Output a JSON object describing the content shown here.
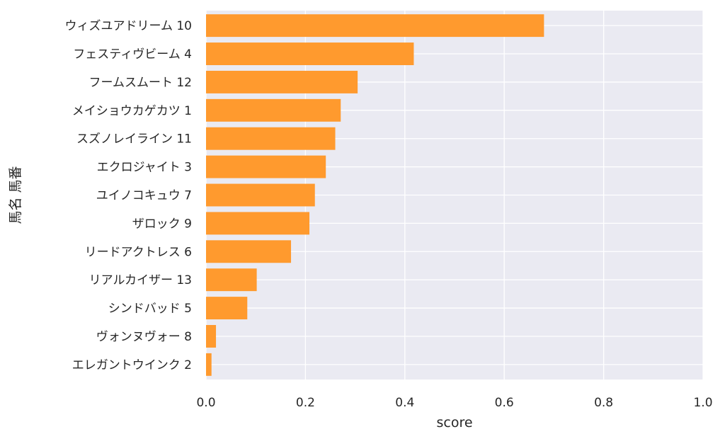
{
  "chart_data": {
    "type": "bar",
    "orientation": "horizontal",
    "categories": [
      "ウィズユアドリーム 10",
      "フェスティヴビーム 4",
      "フームスムート 12",
      "メイショウカゲカツ 1",
      "スズノレイライン 11",
      "エクロジャイト 3",
      "ユイノコキュウ 7",
      "ザロック 9",
      "リードアクトレス 6",
      "リアルカイザー 13",
      "シンドバッド 5",
      "ヴォンヌヴォー 8",
      "エレガントウインク 2"
    ],
    "values": [
      0.68,
      0.418,
      0.305,
      0.271,
      0.26,
      0.241,
      0.219,
      0.208,
      0.171,
      0.102,
      0.083,
      0.02,
      0.011
    ],
    "xlabel": "score",
    "ylabel": "馬名 馬番",
    "xlim": [
      0,
      1.0
    ],
    "xticks": [
      "0.0",
      "0.2",
      "0.4",
      "0.6",
      "0.8",
      "1.0"
    ],
    "grid": true,
    "colors": {
      "bar": "#ff9a2e",
      "plot_bg": "#eaeaf2",
      "grid": "#ffffff",
      "text": "#262626"
    }
  }
}
